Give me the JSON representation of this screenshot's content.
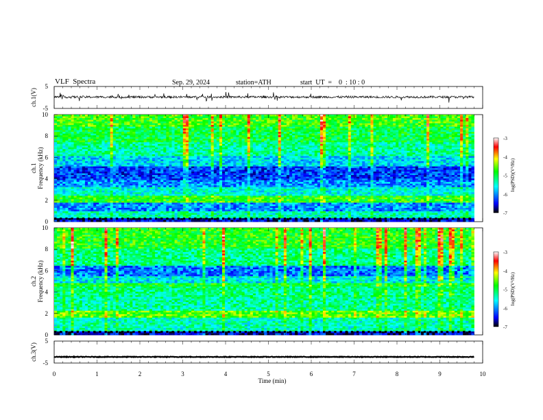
{
  "header": {
    "title": "VLF  Spectra",
    "date": "Sep. 29, 2024",
    "station": "station=ATH",
    "start_ut": "start  UT  =    0  : 10 : 0"
  },
  "chart_data": [
    {
      "type": "line",
      "name": "ch1-waveform",
      "ylabel": "ch.1(V)",
      "ylim": [
        -5,
        5
      ],
      "yticks": [
        "5",
        "-5"
      ],
      "xlim": [
        0,
        10
      ],
      "data_extent_min": 9.8,
      "baseline_v": 0.2,
      "noise_amplitude_v": 0.5,
      "line_color": "#000000"
    },
    {
      "type": "heatmap",
      "name": "ch1-spectrogram",
      "ylabel": "Frequency  (kHz)",
      "channel_label": "ch.1",
      "ylim": [
        0,
        10
      ],
      "yticks": [
        "0",
        "2",
        "4",
        "6",
        "8",
        "10"
      ],
      "xlim": [
        0,
        10
      ],
      "data_extent_min": 9.8,
      "colorbar": {
        "label": "log(PSD)(V²/Hz)",
        "range": [
          -7,
          -3
        ],
        "ticks": [
          "-3",
          "-4",
          "-5",
          "-6",
          "-7"
        ],
        "colors": [
          "#000000",
          "#0000ff",
          "#00ffff",
          "#00ff00",
          "#ffff00",
          "#ff0000",
          "#ffffff"
        ]
      },
      "bands": [
        {
          "from_khz": 0.0,
          "to_khz": 0.3,
          "level": -6.6
        },
        {
          "from_khz": 0.3,
          "to_khz": 1.0,
          "level": -5.4
        },
        {
          "from_khz": 1.0,
          "to_khz": 1.8,
          "level": -6.0
        },
        {
          "from_khz": 1.8,
          "to_khz": 2.4,
          "level": -4.8
        },
        {
          "from_khz": 2.4,
          "to_khz": 3.2,
          "level": -5.5
        },
        {
          "from_khz": 3.2,
          "to_khz": 3.8,
          "level": -6.0
        },
        {
          "from_khz": 3.8,
          "to_khz": 5.2,
          "level": -6.3
        },
        {
          "from_khz": 5.2,
          "to_khz": 6.2,
          "level": -5.7
        },
        {
          "from_khz": 6.2,
          "to_khz": 7.5,
          "level": -5.3
        },
        {
          "from_khz": 7.5,
          "to_khz": 8.8,
          "level": -5.0
        },
        {
          "from_khz": 8.8,
          "to_khz": 10.0,
          "level": -4.7
        }
      ]
    },
    {
      "type": "heatmap",
      "name": "ch2-spectrogram",
      "ylabel": "Frequency  (kHz)",
      "channel_label": "ch.2",
      "ylim": [
        0,
        10
      ],
      "yticks": [
        "0",
        "2",
        "4",
        "6",
        "8",
        "10"
      ],
      "xlim": [
        0,
        10
      ],
      "data_extent_min": 9.8,
      "colorbar": {
        "label": "log(PSD)(V²/Hz)",
        "range": [
          -7,
          -3
        ],
        "ticks": [
          "-3",
          "-4",
          "-5",
          "-6",
          "-7"
        ],
        "colors": [
          "#000000",
          "#0000ff",
          "#00ffff",
          "#00ff00",
          "#ffff00",
          "#ff0000",
          "#ffffff"
        ]
      },
      "bands": [
        {
          "from_khz": 0.0,
          "to_khz": 0.3,
          "level": -6.6
        },
        {
          "from_khz": 0.3,
          "to_khz": 1.6,
          "level": -5.4
        },
        {
          "from_khz": 1.6,
          "to_khz": 2.3,
          "level": -4.6
        },
        {
          "from_khz": 2.3,
          "to_khz": 3.5,
          "level": -5.3
        },
        {
          "from_khz": 3.5,
          "to_khz": 4.5,
          "level": -5.2
        },
        {
          "from_khz": 4.5,
          "to_khz": 4.9,
          "level": -4.9
        },
        {
          "from_khz": 4.9,
          "to_khz": 5.5,
          "level": -5.6
        },
        {
          "from_khz": 5.5,
          "to_khz": 6.5,
          "level": -6.1
        },
        {
          "from_khz": 6.5,
          "to_khz": 8.0,
          "level": -5.2
        },
        {
          "from_khz": 8.0,
          "to_khz": 10.0,
          "level": -4.8
        }
      ]
    },
    {
      "type": "line",
      "name": "ch3-waveform",
      "ylabel": "ch.3(V)",
      "ylim": [
        -5,
        5
      ],
      "yticks": [
        "5",
        "-5"
      ],
      "xlim": [
        0,
        10
      ],
      "xticks": [
        "0",
        "1",
        "2",
        "3",
        "4",
        "5",
        "6",
        "7",
        "8",
        "9",
        "10"
      ],
      "xlabel": "Time  (min)",
      "data_extent_min": 9.8,
      "baseline_v": -2.2,
      "noise_amplitude_v": 0.15,
      "line_color": "#000000"
    }
  ]
}
